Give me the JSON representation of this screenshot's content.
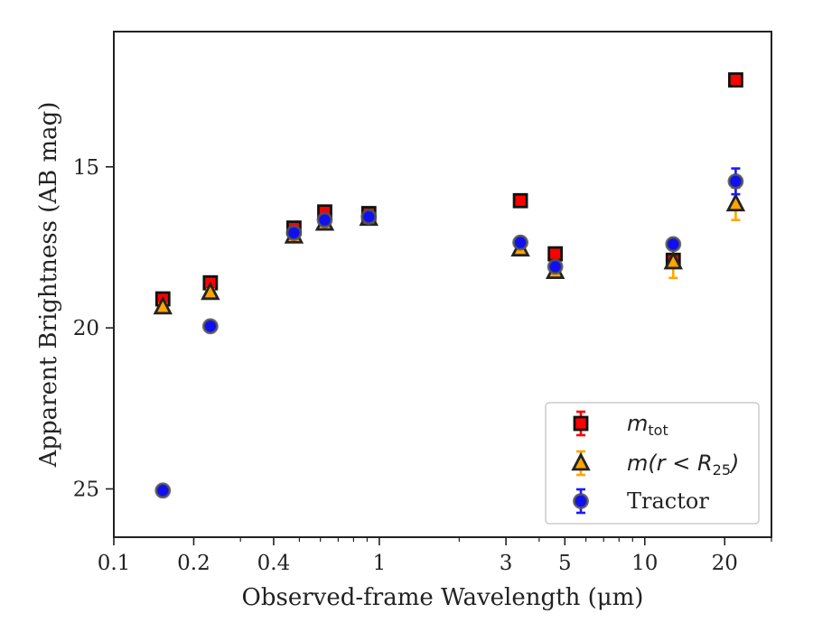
{
  "chart_data": {
    "type": "scatter",
    "xlabel": "Observed-frame Wavelength (μm)",
    "ylabel": "Apparent Brightness (AB mag)",
    "x_scale": "log",
    "xlim": [
      0.1,
      30
    ],
    "ylim": [
      26.5,
      10.8
    ],
    "y_inverted": true,
    "x_ticks": [
      0.1,
      0.2,
      0.4,
      1,
      3,
      5,
      10,
      20
    ],
    "x_tick_labels": [
      "0.1",
      "0.2",
      "0.4",
      "1",
      "3",
      "5",
      "10",
      "20"
    ],
    "y_ticks": [
      15,
      20,
      25
    ],
    "y_tick_labels": [
      "15",
      "20",
      "25"
    ],
    "legend_position": "lower right",
    "series": [
      {
        "name": "m_tot",
        "label_parts": [
          "m",
          "tot"
        ],
        "marker": "square",
        "color": "#ff0000",
        "edge_color": "#111111",
        "err_color": "#ff0000",
        "points": [
          {
            "x": 0.153,
            "y": 19.1,
            "err": 0.1
          },
          {
            "x": 0.231,
            "y": 18.6,
            "err": 0.1
          },
          {
            "x": 0.477,
            "y": 16.9,
            "err": 0.05
          },
          {
            "x": 0.623,
            "y": 16.4,
            "err": 0.05
          },
          {
            "x": 0.913,
            "y": 16.45,
            "err": 0.05
          },
          {
            "x": 3.4,
            "y": 16.05,
            "err": 0.05
          },
          {
            "x": 4.6,
            "y": 17.7,
            "err": 0.05
          },
          {
            "x": 12.8,
            "y": 17.9,
            "err": 0.05
          },
          {
            "x": 22.0,
            "y": 12.3,
            "err": 0.05
          }
        ]
      },
      {
        "name": "m(r < R_25)",
        "label_parts": [
          "m(r < R",
          "25",
          ")"
        ],
        "marker": "triangle",
        "color": "#ffa500",
        "edge_color": "#222222",
        "err_color": "#ffa500",
        "points": [
          {
            "x": 0.153,
            "y": 19.35,
            "err": 0.1
          },
          {
            "x": 0.231,
            "y": 18.9,
            "err": 0.1
          },
          {
            "x": 0.477,
            "y": 17.15,
            "err": 0.05
          },
          {
            "x": 0.623,
            "y": 16.75,
            "err": 0.05
          },
          {
            "x": 0.913,
            "y": 16.6,
            "err": 0.05
          },
          {
            "x": 3.4,
            "y": 17.55,
            "err": 0.05
          },
          {
            "x": 4.6,
            "y": 18.25,
            "err": 0.05
          },
          {
            "x": 12.8,
            "y": 17.95,
            "err": 0.5
          },
          {
            "x": 22.0,
            "y": 16.15,
            "err": 0.5
          }
        ]
      },
      {
        "name": "Tractor",
        "label_parts": [
          "Tractor"
        ],
        "marker": "circle",
        "color": "#1010ee",
        "edge_color": "#555555",
        "err_color": "#1a1aff",
        "points": [
          {
            "x": 0.153,
            "y": 25.05,
            "err": 0.1
          },
          {
            "x": 0.231,
            "y": 19.95,
            "err": 0.1
          },
          {
            "x": 0.477,
            "y": 17.05,
            "err": 0.05
          },
          {
            "x": 0.623,
            "y": 16.65,
            "err": 0.05
          },
          {
            "x": 0.913,
            "y": 16.55,
            "err": 0.05
          },
          {
            "x": 3.4,
            "y": 17.35,
            "err": 0.05
          },
          {
            "x": 4.6,
            "y": 18.1,
            "err": 0.05
          },
          {
            "x": 12.8,
            "y": 17.4,
            "err": 0.1
          },
          {
            "x": 22.0,
            "y": 15.45,
            "err": 0.4
          }
        ]
      }
    ]
  }
}
